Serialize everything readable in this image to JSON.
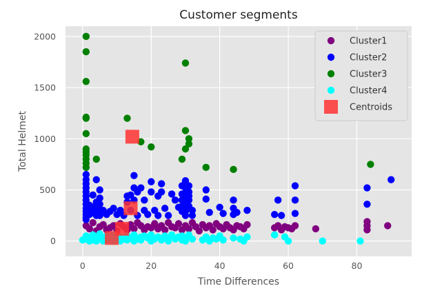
{
  "chart_data": {
    "type": "scatter",
    "title": "Customer segments",
    "xlabel": "Time Differences",
    "ylabel": "Total Helmet",
    "xlim": [
      -5,
      96
    ],
    "ylim": [
      -150,
      2100
    ],
    "xticks": [
      0,
      20,
      40,
      60,
      80
    ],
    "yticks": [
      0,
      500,
      1000,
      1500,
      2000
    ],
    "grid": true,
    "legend_position": "top-right",
    "background": "#e5e5e5",
    "series": [
      {
        "name": "Cluster1",
        "color": "#800080",
        "marker": "circle",
        "points": [
          [
            1,
            150
          ],
          [
            2,
            120
          ],
          [
            3,
            180
          ],
          [
            4,
            100
          ],
          [
            5,
            140
          ],
          [
            6,
            160
          ],
          [
            7,
            110
          ],
          [
            8,
            130
          ],
          [
            9,
            150
          ],
          [
            10,
            100
          ],
          [
            11,
            170
          ],
          [
            12,
            140
          ],
          [
            13,
            110
          ],
          [
            14,
            160
          ],
          [
            15,
            120
          ],
          [
            16,
            180
          ],
          [
            17,
            150
          ],
          [
            18,
            110
          ],
          [
            19,
            140
          ],
          [
            20,
            130
          ],
          [
            21,
            170
          ],
          [
            22,
            120
          ],
          [
            23,
            150
          ],
          [
            24,
            110
          ],
          [
            25,
            180
          ],
          [
            26,
            140
          ],
          [
            27,
            130
          ],
          [
            28,
            170
          ],
          [
            29,
            110
          ],
          [
            30,
            150
          ],
          [
            31,
            120
          ],
          [
            32,
            180
          ],
          [
            33,
            140
          ],
          [
            34,
            100
          ],
          [
            35,
            160
          ],
          [
            36,
            130
          ],
          [
            37,
            150
          ],
          [
            38,
            110
          ],
          [
            39,
            170
          ],
          [
            40,
            140
          ],
          [
            41,
            120
          ],
          [
            42,
            160
          ],
          [
            43,
            130
          ],
          [
            44,
            110
          ],
          [
            45,
            150
          ],
          [
            46,
            140
          ],
          [
            47,
            120
          ],
          [
            48,
            160
          ],
          [
            56,
            130
          ],
          [
            57,
            150
          ],
          [
            58,
            110
          ],
          [
            59,
            140
          ],
          [
            60,
            130
          ],
          [
            61,
            120
          ],
          [
            62,
            150
          ],
          [
            68,
            120
          ],
          [
            83,
            110
          ],
          [
            83,
            150
          ],
          [
            83,
            190
          ],
          [
            89,
            150
          ]
        ]
      },
      {
        "name": "Cluster2",
        "color": "#0000ff",
        "marker": "circle",
        "points": [
          [
            1,
            650
          ],
          [
            1,
            600
          ],
          [
            1,
            560
          ],
          [
            1,
            520
          ],
          [
            1,
            480
          ],
          [
            1,
            440
          ],
          [
            1,
            400
          ],
          [
            1,
            360
          ],
          [
            1,
            320
          ],
          [
            1,
            290
          ],
          [
            1,
            260
          ],
          [
            1,
            230
          ],
          [
            1,
            210
          ],
          [
            2,
            350
          ],
          [
            2,
            300
          ],
          [
            2,
            260
          ],
          [
            3,
            450
          ],
          [
            3,
            330
          ],
          [
            3,
            280
          ],
          [
            4,
            600
          ],
          [
            4,
            380
          ],
          [
            4,
            310
          ],
          [
            4,
            250
          ],
          [
            5,
            500
          ],
          [
            5,
            420
          ],
          [
            5,
            360
          ],
          [
            5,
            300
          ],
          [
            5,
            250
          ],
          [
            6,
            300
          ],
          [
            7,
            260
          ],
          [
            8,
            290
          ],
          [
            9,
            320
          ],
          [
            10,
            260
          ],
          [
            11,
            300
          ],
          [
            12,
            250
          ],
          [
            13,
            440
          ],
          [
            13,
            380
          ],
          [
            14,
            450
          ],
          [
            14,
            300
          ],
          [
            15,
            640
          ],
          [
            15,
            520
          ],
          [
            15,
            400
          ],
          [
            16,
            480
          ],
          [
            16,
            250
          ],
          [
            17,
            520
          ],
          [
            18,
            400
          ],
          [
            18,
            300
          ],
          [
            19,
            260
          ],
          [
            20,
            580
          ],
          [
            20,
            480
          ],
          [
            21,
            300
          ],
          [
            22,
            250
          ],
          [
            22,
            440
          ],
          [
            23,
            560
          ],
          [
            23,
            480
          ],
          [
            24,
            320
          ],
          [
            25,
            250
          ],
          [
            26,
            460
          ],
          [
            27,
            400
          ],
          [
            28,
            330
          ],
          [
            29,
            540
          ],
          [
            29,
            460
          ],
          [
            29,
            400
          ],
          [
            29,
            340
          ],
          [
            29,
            290
          ],
          [
            30,
            590
          ],
          [
            30,
            520
          ],
          [
            30,
            470
          ],
          [
            30,
            420
          ],
          [
            30,
            380
          ],
          [
            30,
            340
          ],
          [
            30,
            290
          ],
          [
            30,
            250
          ],
          [
            31,
            540
          ],
          [
            31,
            480
          ],
          [
            31,
            440
          ],
          [
            31,
            400
          ],
          [
            31,
            340
          ],
          [
            32,
            300
          ],
          [
            32,
            250
          ],
          [
            36,
            500
          ],
          [
            36,
            410
          ],
          [
            37,
            280
          ],
          [
            40,
            330
          ],
          [
            41,
            270
          ],
          [
            44,
            400
          ],
          [
            44,
            320
          ],
          [
            44,
            260
          ],
          [
            45,
            280
          ],
          [
            48,
            300
          ],
          [
            56,
            260
          ],
          [
            57,
            400
          ],
          [
            58,
            250
          ],
          [
            62,
            540
          ],
          [
            62,
            400
          ],
          [
            62,
            270
          ],
          [
            83,
            520
          ],
          [
            83,
            360
          ],
          [
            90,
            600
          ]
        ]
      },
      {
        "name": "Cluster3",
        "color": "#008000",
        "marker": "circle",
        "points": [
          [
            1,
            2000
          ],
          [
            1,
            1850
          ],
          [
            1,
            1560
          ],
          [
            1,
            1210
          ],
          [
            1,
            1200
          ],
          [
            1,
            1050
          ],
          [
            1,
            900
          ],
          [
            1,
            870
          ],
          [
            1,
            840
          ],
          [
            1,
            800
          ],
          [
            1,
            760
          ],
          [
            1,
            720
          ],
          [
            4,
            800
          ],
          [
            13,
            1200
          ],
          [
            17,
            970
          ],
          [
            20,
            920
          ],
          [
            29,
            800
          ],
          [
            30,
            1740
          ],
          [
            30,
            1080
          ],
          [
            30,
            900
          ],
          [
            31,
            1000
          ],
          [
            31,
            950
          ],
          [
            36,
            720
          ],
          [
            44,
            700
          ],
          [
            84,
            750
          ]
        ]
      },
      {
        "name": "Cluster4",
        "color": "#00ffff",
        "marker": "circle",
        "points": [
          [
            0,
            10
          ],
          [
            1,
            20
          ],
          [
            1,
            50
          ],
          [
            2,
            30
          ],
          [
            2,
            0
          ],
          [
            3,
            60
          ],
          [
            3,
            10
          ],
          [
            4,
            40
          ],
          [
            4,
            0
          ],
          [
            5,
            20
          ],
          [
            5,
            70
          ],
          [
            6,
            30
          ],
          [
            6,
            0
          ],
          [
            7,
            50
          ],
          [
            7,
            10
          ],
          [
            8,
            20
          ],
          [
            9,
            60
          ],
          [
            9,
            0
          ],
          [
            10,
            30
          ],
          [
            11,
            40
          ],
          [
            11,
            0
          ],
          [
            12,
            20
          ],
          [
            13,
            50
          ],
          [
            13,
            10
          ],
          [
            14,
            30
          ],
          [
            15,
            60
          ],
          [
            15,
            0
          ],
          [
            16,
            20
          ],
          [
            17,
            40
          ],
          [
            17,
            10
          ],
          [
            18,
            50
          ],
          [
            19,
            30
          ],
          [
            20,
            0
          ],
          [
            20,
            60
          ],
          [
            21,
            20
          ],
          [
            22,
            40
          ],
          [
            23,
            10
          ],
          [
            24,
            50
          ],
          [
            25,
            30
          ],
          [
            25,
            0
          ],
          [
            26,
            60
          ],
          [
            27,
            20
          ],
          [
            28,
            40
          ],
          [
            29,
            10
          ],
          [
            29,
            50
          ],
          [
            30,
            30
          ],
          [
            30,
            0
          ],
          [
            31,
            60
          ],
          [
            32,
            20
          ],
          [
            35,
            10
          ],
          [
            36,
            40
          ],
          [
            37,
            0
          ],
          [
            38,
            30
          ],
          [
            39,
            20
          ],
          [
            40,
            50
          ],
          [
            41,
            10
          ],
          [
            44,
            30
          ],
          [
            46,
            20
          ],
          [
            47,
            0
          ],
          [
            48,
            40
          ],
          [
            56,
            60
          ],
          [
            59,
            40
          ],
          [
            60,
            0
          ],
          [
            70,
            0
          ],
          [
            81,
            0
          ]
        ]
      },
      {
        "name": "Centroids",
        "color": "#ff3333",
        "marker": "square",
        "points": [
          [
            14.5,
            1020
          ],
          [
            14,
            320
          ],
          [
            11.5,
            120
          ],
          [
            8.5,
            30
          ]
        ]
      }
    ]
  }
}
